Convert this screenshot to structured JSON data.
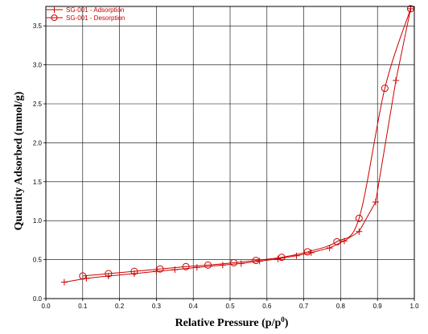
{
  "chart_data": {
    "type": "line",
    "xlabel": "Relative Pressure (p/p",
    "xlabel_sup": "0",
    "xlabel_tail": ")",
    "ylabel": "Quantity Adsorbed (mmol/g)",
    "xlim": [
      0.0,
      1.0
    ],
    "ylim": [
      0.0,
      3.75
    ],
    "x_ticks": [
      "0.0",
      "0.1",
      "0.2",
      "0.3",
      "0.4",
      "0.5",
      "0.6",
      "0.7",
      "0.8",
      "0.9",
      "1.0"
    ],
    "y_ticks": [
      "0.0",
      "0.5",
      "1.0",
      "1.5",
      "2.0",
      "2.5",
      "3.0",
      "3.5"
    ],
    "grid": true,
    "legend_position": "top-left",
    "color": "#cc0000",
    "series": [
      {
        "name": "SG-001 - Adsorption",
        "marker": "plus",
        "x": [
          0.05,
          0.11,
          0.17,
          0.24,
          0.3,
          0.35,
          0.41,
          0.48,
          0.53,
          0.58,
          0.63,
          0.68,
          0.72,
          0.77,
          0.81,
          0.85,
          0.895,
          0.95,
          0.99
        ],
        "y": [
          0.21,
          0.26,
          0.29,
          0.32,
          0.35,
          0.37,
          0.4,
          0.43,
          0.45,
          0.48,
          0.51,
          0.55,
          0.59,
          0.65,
          0.74,
          0.86,
          1.24,
          2.8,
          3.72
        ]
      },
      {
        "name": "SG-001 - Desorption",
        "marker": "circle",
        "x": [
          0.99,
          0.92,
          0.85,
          0.79,
          0.71,
          0.64,
          0.57,
          0.51,
          0.44,
          0.38,
          0.31,
          0.24,
          0.17,
          0.1
        ],
        "y": [
          3.72,
          2.7,
          1.03,
          0.73,
          0.6,
          0.53,
          0.49,
          0.46,
          0.43,
          0.41,
          0.38,
          0.35,
          0.32,
          0.29
        ]
      }
    ]
  }
}
